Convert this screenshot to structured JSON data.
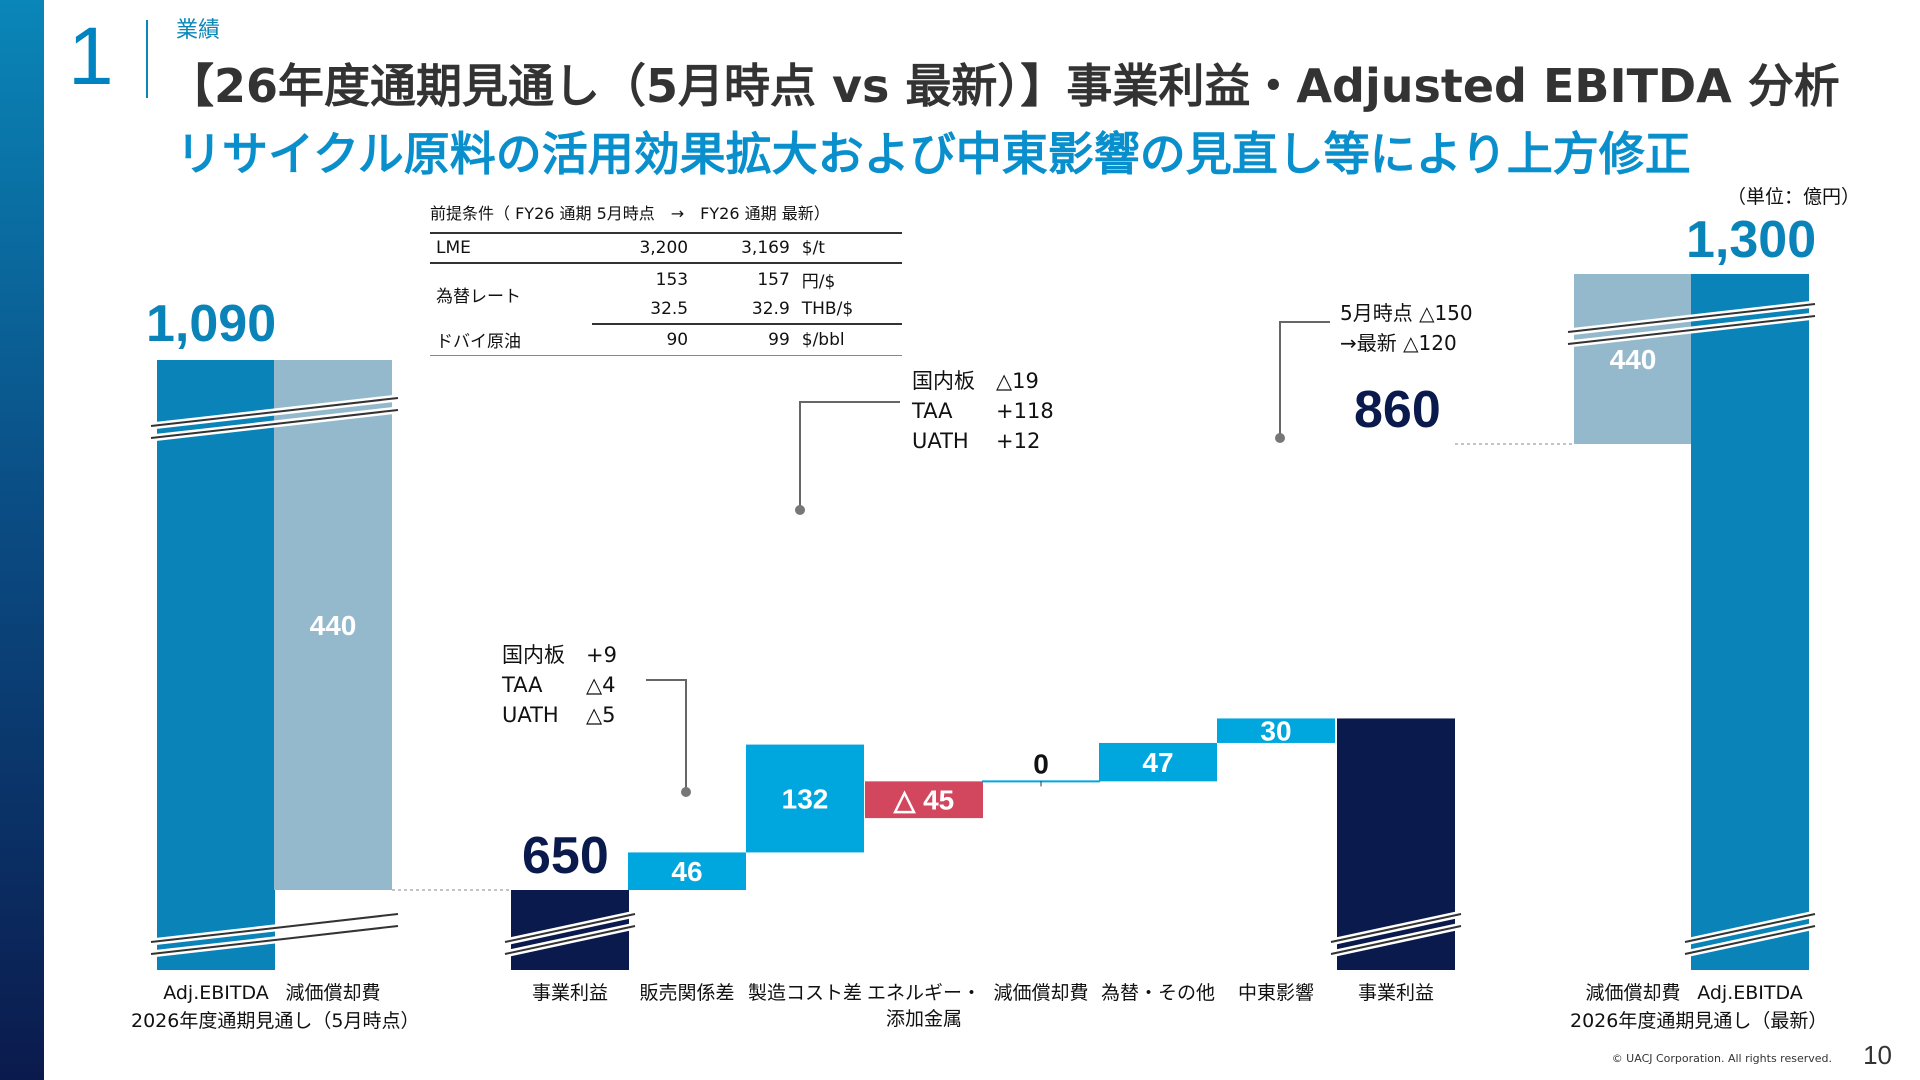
{
  "header": {
    "section_number": "1",
    "section_tag": "業績",
    "title": "【26年度通期見通し（5月時点 vs 最新）】事業利益・Adjusted EBITDA 分析",
    "subtitle": "リサイクル原料の活用効果拡大および中東影響の見直し等により上方修正",
    "unit": "（単位：億円）"
  },
  "premise_table": {
    "caption": "前提条件（ FY26 通期 5月時点　→　FY26 通期 最新）",
    "rows": [
      {
        "label": "LME",
        "may": "3,200",
        "latest": "3,169",
        "unit": "$/t"
      },
      {
        "label": "為替レート",
        "may": "153",
        "latest": "157",
        "unit": "円/$"
      },
      {
        "label": "",
        "may": "32.5",
        "latest": "32.9",
        "unit": "THB/$"
      },
      {
        "label": "ドバイ原油",
        "may": "90",
        "latest": "99",
        "unit": "$/bbl"
      }
    ]
  },
  "colors": {
    "cyan_bar": "#0a84b8",
    "light_bar": "#95b9cc",
    "navy_bar": "#0b1a4d",
    "positive_bar": "#00a6de",
    "negative_bar": "#d2475e",
    "title_blue": "#0a8fcd"
  },
  "annotations": {
    "sales_detail": [
      {
        "label": "国内板",
        "value": "+9"
      },
      {
        "label": "TAA",
        "value": "△4"
      },
      {
        "label": "UATH",
        "value": "△5"
      }
    ],
    "cost_detail": [
      {
        "label": "国内板",
        "value": "△19"
      },
      {
        "label": "TAA",
        "value": "+118"
      },
      {
        "label": "UATH",
        "value": "+12"
      }
    ],
    "middle_east_note": [
      "5月時点 △150",
      "→最新 △120"
    ]
  },
  "group_labels": {
    "left": "2026年度通期見通し（5月時点）",
    "right": "2026年度通期見通し（最新）"
  },
  "chart_data": {
    "type": "bar",
    "subtype": "waterfall",
    "categories": [
      "Adj.EBITDA",
      "減価償却費",
      "事業利益",
      "販売関係差",
      "製造コスト差",
      "エネルギー・添加金属",
      "減価償却費",
      "為替・その他",
      "中東影響",
      "事業利益",
      "減価償却費",
      "Adj.EBITDA"
    ],
    "values": [
      1090,
      440,
      650,
      46,
      132,
      -45,
      0,
      47,
      30,
      860,
      440,
      1300
    ],
    "value_labels": [
      "1,090",
      "440",
      "650",
      "46",
      "132",
      "△ 45",
      "0",
      "47",
      "30",
      "860",
      "440",
      "1,300"
    ],
    "base": [
      0,
      650,
      0,
      650,
      696,
      783,
      783,
      783,
      830,
      0,
      860,
      0
    ],
    "kind": [
      "total",
      "light",
      "navy",
      "delta",
      "delta",
      "delta",
      "delta",
      "delta",
      "delta",
      "navy",
      "light",
      "total"
    ],
    "axis_break": true,
    "legend": "none"
  },
  "footer": {
    "copyright": "© UACJ Corporation. All rights reserved.",
    "page": "10"
  }
}
